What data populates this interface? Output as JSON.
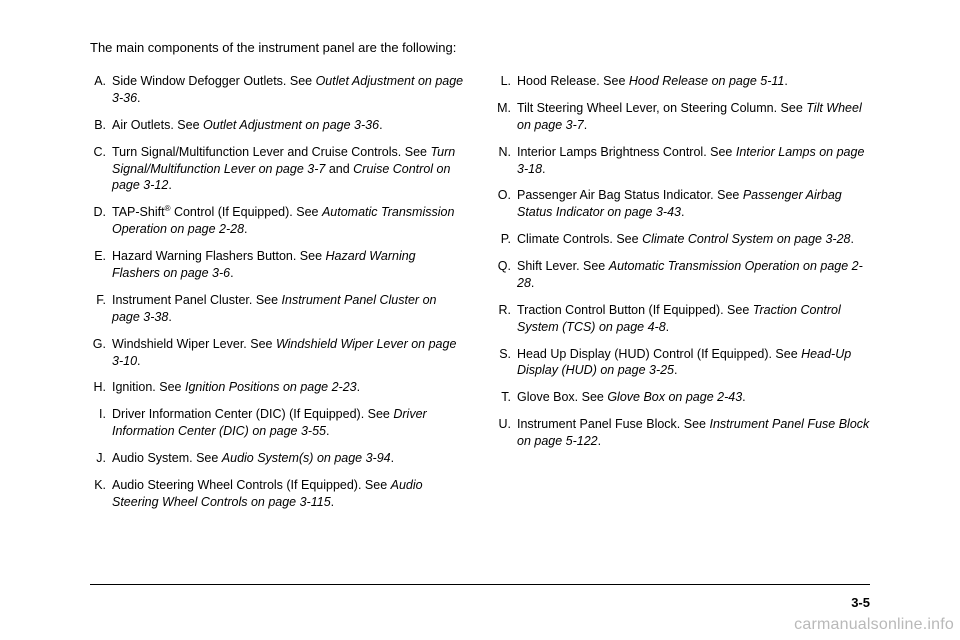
{
  "intro": "The main components of the instrument panel are the following:",
  "left": [
    {
      "l": "A.",
      "pre": "Side Window Defogger Outlets. See ",
      "ref": "Outlet Adjustment on page 3-36",
      "post": "."
    },
    {
      "l": "B.",
      "pre": "Air Outlets. See ",
      "ref": "Outlet Adjustment on page 3-36",
      "post": "."
    },
    {
      "l": "C.",
      "pre": "Turn Signal/Multifunction Lever and Cruise Controls. See ",
      "ref": "Turn Signal/Multifunction Lever on page 3-7",
      "mid": " and ",
      "ref2": "Cruise Control on page 3-12",
      "post": "."
    },
    {
      "l": "D.",
      "pre": "TAP-Shift",
      "sup": "®",
      "pre2": " Control (If Equipped). See ",
      "ref": "Automatic Transmission Operation on page 2-28",
      "post": "."
    },
    {
      "l": "E.",
      "pre": "Hazard Warning Flashers Button. See ",
      "ref": "Hazard Warning Flashers on page 3-6",
      "post": "."
    },
    {
      "l": "F.",
      "pre": "Instrument Panel Cluster. See ",
      "ref": "Instrument Panel Cluster on page 3-38",
      "post": "."
    },
    {
      "l": "G.",
      "pre": "Windshield Wiper Lever. See ",
      "ref": "Windshield Wiper Lever on page 3-10",
      "post": "."
    },
    {
      "l": "H.",
      "pre": "Ignition. See ",
      "ref": "Ignition Positions on page 2-23",
      "post": "."
    },
    {
      "l": "I.",
      "pre": "Driver Information Center (DIC) (If Equipped). See ",
      "ref": "Driver Information Center (DIC) on page 3-55",
      "post": "."
    },
    {
      "l": "J.",
      "pre": "Audio System. See ",
      "ref": "Audio System(s) on page 3-94",
      "post": "."
    },
    {
      "l": "K.",
      "pre": "Audio Steering Wheel Controls (If Equipped). See ",
      "ref": "Audio Steering Wheel Controls on page 3-115",
      "post": "."
    }
  ],
  "right": [
    {
      "l": "L.",
      "pre": "Hood Release. See ",
      "ref": "Hood Release on page 5-11",
      "post": "."
    },
    {
      "l": "M.",
      "pre": "Tilt Steering Wheel Lever, on Steering Column. See ",
      "ref": "Tilt Wheel on page 3-7",
      "post": "."
    },
    {
      "l": "N.",
      "pre": "Interior Lamps Brightness Control. See ",
      "ref": "Interior Lamps on page 3-18",
      "post": "."
    },
    {
      "l": "O.",
      "pre": "Passenger Air Bag Status Indicator. See ",
      "ref": "Passenger Airbag Status Indicator on page 3-43",
      "post": "."
    },
    {
      "l": "P.",
      "pre": "Climate Controls. See ",
      "ref": "Climate Control System on page 3-28",
      "post": "."
    },
    {
      "l": "Q.",
      "pre": "Shift Lever. See ",
      "ref": "Automatic Transmission Operation on page 2-28",
      "post": "."
    },
    {
      "l": "R.",
      "pre": "Traction Control Button (If Equipped). See ",
      "ref": "Traction Control System (TCS) on page 4-8",
      "post": "."
    },
    {
      "l": "S.",
      "pre": "Head Up Display (HUD) Control (If Equipped). See ",
      "ref": "Head-Up Display (HUD) on page 3-25",
      "post": "."
    },
    {
      "l": "T.",
      "pre": "Glove Box. See ",
      "ref": "Glove Box on page 2-43",
      "post": "."
    },
    {
      "l": "U.",
      "pre": "Instrument Panel Fuse Block. See ",
      "ref": "Instrument Panel Fuse Block on page 5-122",
      "post": "."
    }
  ],
  "pagenum": "3-5",
  "watermark": "carmanualsonline.info"
}
